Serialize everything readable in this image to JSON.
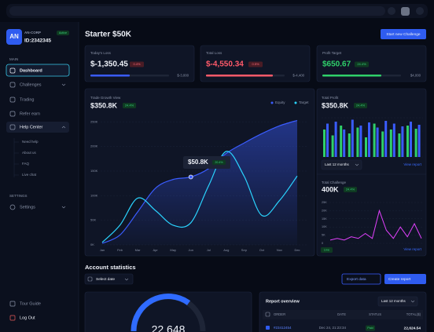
{
  "sidebar": {
    "avatar": "AN",
    "company": "AN-CORP",
    "status": "Active",
    "account_id": "ID:2342345",
    "section_main": "MAIN",
    "nav": [
      "Dashboard",
      "Challenges",
      "Trading",
      "Refer earn",
      "Help Center"
    ],
    "help_items": [
      "Need help",
      "About us",
      "FAQ",
      "Live chat"
    ],
    "section_settings": "SETTINGS",
    "settings": "Settings",
    "tour_guide": "Tour Guide",
    "log_out": "Log Out"
  },
  "header": {
    "title": "Starter $50K",
    "button": "Start new Challenge"
  },
  "cards": [
    {
      "label": "Today's Loss",
      "value": "$-1,350.45",
      "change": "0.4%",
      "limit": "$-3,000"
    },
    {
      "label": "Total Loss",
      "value": "$-4,550.34",
      "change": "0.5%",
      "limit": "$-4,400"
    },
    {
      "label": "Profit Target",
      "value": "$650.67",
      "change": "24.4%",
      "limit": "$4,000"
    }
  ],
  "chart_data": [
    {
      "type": "line",
      "title": "Trade Growth View",
      "value": "$350.8K",
      "change": "24.4%",
      "legend": "top-right",
      "grid": true,
      "x": [
        "Jan",
        "Feb",
        "Mar",
        "Apr",
        "May",
        "Jun",
        "Jul",
        "Aug",
        "Sep",
        "Oct",
        "Nov",
        "Dec"
      ],
      "series": [
        {
          "name": "Equity",
          "type": "area",
          "color": "#3a5cff",
          "values": [
            3000,
            20000,
            67000,
            115000,
            133000,
            138000,
            155000,
            186000,
            207000,
            226000,
            242000,
            253000
          ]
        },
        {
          "name": "Target",
          "type": "line",
          "color": "#2ad4ff",
          "values": [
            5000,
            40000,
            95000,
            70000,
            40000,
            45000,
            120000,
            190000,
            140000,
            60000,
            90000,
            140000
          ]
        }
      ],
      "ylim": [
        0,
        260000
      ],
      "yticks": [
        {
          "value": 250000,
          "label": "250K"
        },
        {
          "value": 200000,
          "label": "200K"
        },
        {
          "value": 150000,
          "label": "150K"
        },
        {
          "value": 100000,
          "label": "100K"
        },
        {
          "value": 50000,
          "label": "50K"
        },
        {
          "value": 0,
          "label": "0K"
        }
      ],
      "annotation": {
        "value": "$50.8K",
        "change": "20.4%"
      }
    },
    {
      "type": "bar",
      "title": "Total Profit",
      "value": "$350.8K",
      "change": "24.4%",
      "period": "Last 12 months",
      "link": "View report",
      "grid": true,
      "categories": [
        null,
        null,
        null,
        null,
        null,
        null,
        null,
        null,
        null,
        null,
        null,
        null
      ],
      "series": [
        {
          "name": null,
          "color": "#2fd06a",
          "values": [
            70,
            55,
            80,
            60,
            75,
            50,
            85,
            65,
            70,
            60,
            80,
            72
          ]
        },
        {
          "name": null,
          "color": "#3a5cff",
          "values": [
            85,
            90,
            70,
            95,
            80,
            88,
            75,
            92,
            85,
            78,
            90,
            82
          ]
        }
      ],
      "ylim": [
        0,
        100
      ]
    },
    {
      "type": "line",
      "title": "Total Challenge",
      "value": "400K",
      "change": "24.4%",
      "status": "Live",
      "link": "View report",
      "grid": true,
      "categories": [
        null,
        null,
        null,
        null,
        null,
        null,
        null,
        null,
        null,
        null,
        null,
        null,
        null,
        null
      ],
      "series": [
        {
          "name": null,
          "color": "#e040fb",
          "values": [
            2000,
            3000,
            2000,
            4000,
            3000,
            6000,
            3000,
            20000,
            8000,
            3000,
            10000,
            4000,
            12000,
            3000
          ]
        }
      ],
      "ylim": [
        0,
        25000
      ],
      "yticks": [
        {
          "value": 25000,
          "label": "25K"
        },
        {
          "value": 20000,
          "label": "20K"
        },
        {
          "value": 15000,
          "label": "15K"
        },
        {
          "value": 10000,
          "label": "10K"
        },
        {
          "value": 5000,
          "label": "5K"
        },
        0
      ]
    }
  ],
  "stats": {
    "title": "Account statistics",
    "date_select": "Select date",
    "export": "Export data",
    "create": "Create report",
    "gauge_value": "22,648"
  },
  "report": {
    "title": "Report overview",
    "period": "Last 12 months",
    "columns": [
      "ORDER",
      "DATE",
      "STATUS",
      "TOTAL($)"
    ],
    "rows": [
      [
        "#23412454",
        "Dec 24, 21:23:34",
        "Paid",
        "22,624.54"
      ]
    ]
  }
}
